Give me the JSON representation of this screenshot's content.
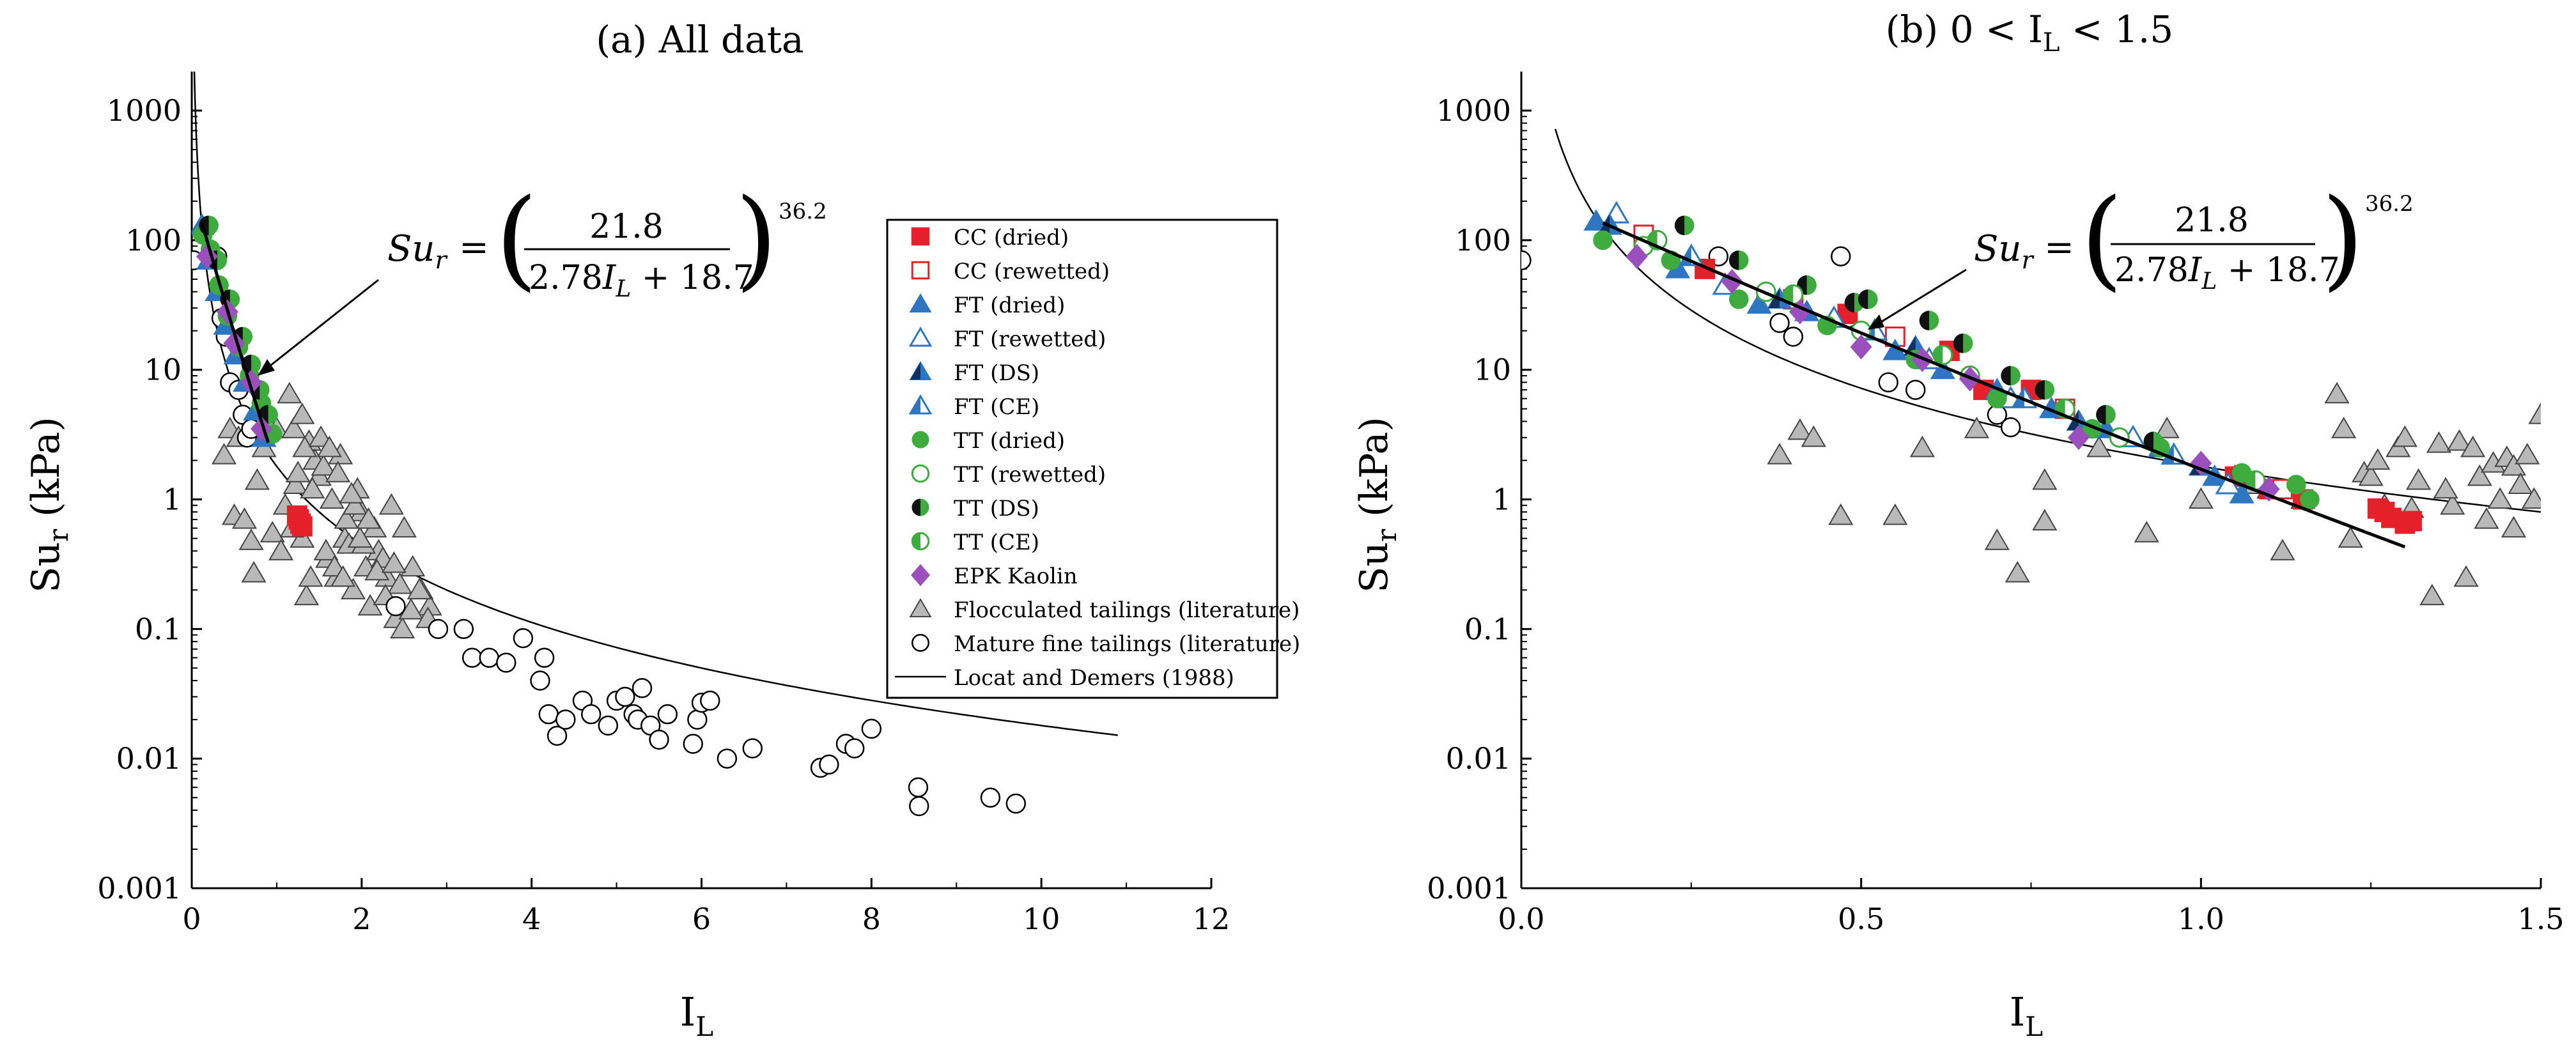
{
  "colors": {
    "axis": "#000000",
    "cc": "#e5202a",
    "ft": "#2e76c2",
    "ft_dark": "#14305c",
    "tt": "#3dab3d",
    "kaolin": "#9b4fbc",
    "floc_fill": "#b9b9b9",
    "floc_stroke": "#444444",
    "mft_fill": "#ffffff"
  },
  "legend": {
    "items": [
      {
        "label": "CC (dried)",
        "marker": "square-filled",
        "color": "#e5202a"
      },
      {
        "label": "CC (rewetted)",
        "marker": "square-open",
        "color": "#e5202a"
      },
      {
        "label": "FT (dried)",
        "marker": "triangle-filled",
        "color": "#2e76c2"
      },
      {
        "label": "FT (rewetted)",
        "marker": "triangle-open",
        "color": "#2e76c2"
      },
      {
        "label": "FT (DS)",
        "marker": "triangle-dark",
        "color": "#2e76c2"
      },
      {
        "label": "FT (CE)",
        "marker": "triangle-half",
        "color": "#2e76c2"
      },
      {
        "label": "TT (dried)",
        "marker": "circle-filled",
        "color": "#3dab3d"
      },
      {
        "label": "TT (rewetted)",
        "marker": "circle-open",
        "color": "#3dab3d"
      },
      {
        "label": "TT (DS)",
        "marker": "circle-dark",
        "color": "#3dab3d"
      },
      {
        "label": "TT (CE)",
        "marker": "circle-half",
        "color": "#3dab3d"
      },
      {
        "label": "EPK Kaolin",
        "marker": "diamond",
        "color": "#9b4fbc"
      },
      {
        "label": "Flocculated tailings (literature)",
        "marker": "triangle-gray",
        "color": "#b9b9b9"
      },
      {
        "label": "Mature fine tailings (literature)",
        "marker": "circle-white",
        "color": "#000000"
      },
      {
        "label": "Locat and Demers (1988)",
        "marker": "line",
        "color": "#000000"
      }
    ]
  },
  "equation": {
    "lhs": "Su",
    "lhs_sub": "r",
    "eq": "=",
    "num": "21.8",
    "den_a": "2.78",
    "den_var": "I",
    "den_var_sub": "L",
    "den_b": "+ 18.7",
    "exp": "36.2"
  },
  "chart_data": [
    {
      "type": "scatter",
      "title": "(a) All data",
      "xlabel": "I",
      "xlabel_sub": "L",
      "ylabel": "Su",
      "ylabel_sub": "r",
      "ylabel_unit": "(kPa)",
      "xlim": [
        0,
        12
      ],
      "ylim": [
        0.001,
        2000
      ],
      "yscale": "log",
      "xticks": [
        0,
        2,
        4,
        6,
        8,
        10,
        12
      ],
      "xtick_labels": [
        "0",
        "2",
        "4",
        "6",
        "8",
        "10",
        "12"
      ],
      "yticks": [
        0.001,
        0.01,
        0.1,
        1,
        10,
        100,
        1000
      ],
      "ytick_labels": [
        "0.001",
        "0.01",
        "0.1",
        "1",
        "10",
        "100",
        "1000"
      ],
      "legend_position": "top-right",
      "fit_line": {
        "name": "Su_r = (21.8/(2.78 I_L + 18.7))^36.2",
        "x": [
          0.12,
          0.9
        ]
      },
      "curve": {
        "name": "Locat and Demers (1988)",
        "x_start": 0.02,
        "x_end": 10.9
      },
      "series": [
        {
          "name": "CC (dried)",
          "marker": "square-filled",
          "x": [
            1.24,
            1.26,
            1.28,
            1.3
          ],
          "y": [
            0.75,
            0.7,
            0.65,
            0.62
          ]
        },
        {
          "name": "FT (dried)",
          "marker": "triangle-filled",
          "x": [
            0.12,
            0.2,
            0.3,
            0.4,
            0.52,
            0.63,
            0.75,
            0.85
          ],
          "y": [
            130,
            70,
            40,
            22,
            13,
            8,
            4.8,
            3
          ]
        },
        {
          "name": "TT (dried)",
          "marker": "circle-filled",
          "x": [
            0.13,
            0.22,
            0.32,
            0.42,
            0.55,
            0.68,
            0.82,
            0.95
          ],
          "y": [
            110,
            85,
            45,
            26,
            15,
            9,
            5.5,
            3.2
          ]
        },
        {
          "name": "TT (DS)",
          "marker": "circle-dark",
          "x": [
            0.2,
            0.3,
            0.45,
            0.6,
            0.7,
            0.8,
            0.9
          ],
          "y": [
            130,
            70,
            35,
            18,
            11,
            7,
            4.5
          ]
        },
        {
          "name": "EPK Kaolin",
          "marker": "diamond",
          "x": [
            0.18,
            0.42,
            0.5,
            0.7,
            0.82
          ],
          "y": [
            75,
            28,
            16,
            8,
            3.5
          ]
        },
        {
          "name": "Flocculated tailings (literature)",
          "marker": "triangle-gray",
          "x": [
            0.38,
            0.45,
            0.5,
            0.55,
            0.62,
            0.7,
            0.73,
            0.77,
            0.85,
            0.95,
            1.0,
            1.05,
            1.1,
            1.15,
            1.2,
            1.22,
            1.25,
            1.3,
            1.35,
            1.38,
            1.4,
            1.45,
            1.5,
            1.3,
            1.42,
            1.18,
            1.33,
            1.6,
            1.7,
            1.8,
            1.9,
            2.0,
            2.05,
            2.1,
            2.2,
            2.3,
            2.4,
            2.5,
            2.6,
            2.7,
            2.8,
            1.55,
            1.65,
            1.75,
            1.85,
            1.95,
            2.15,
            2.25,
            2.35,
            2.45,
            1.52,
            1.62,
            1.72,
            1.82,
            1.92,
            2.02,
            1.58,
            1.68,
            1.78,
            1.88,
            1.98,
            2.08,
            2.18,
            2.28,
            2.38,
            2.48,
            2.58,
            2.68,
            2.78
          ],
          "y": [
            2.2,
            3.5,
            0.75,
            3.0,
            0.7,
            0.48,
            0.27,
            1.4,
            2.5,
            0.55,
            3.5,
            0.4,
            0.9,
            6.5,
            3.5,
            1.3,
            1.6,
            0.5,
            0.18,
            2.8,
            0.25,
            2.0,
            1.5,
            4.5,
            1.2,
            0.6,
            2.5,
            0.35,
            0.25,
            0.5,
            0.2,
            0.8,
            0.3,
            0.15,
            0.4,
            0.25,
            0.12,
            0.6,
            0.3,
            0.2,
            0.15,
            1.8,
            1.0,
            2.2,
            0.45,
            1.2,
            0.6,
            0.35,
            0.9,
            0.22,
            3.0,
            2.5,
            1.6,
            0.7,
            0.9,
            0.45,
            0.4,
            0.3,
            0.25,
            1.1,
            0.5,
            0.7,
            0.28,
            0.18,
            0.32,
            0.1,
            0.14,
            0.2,
            0.12
          ]
        },
        {
          "name": "Mature fine tailings (literature)",
          "marker": "circle-white",
          "x": [
            0.02,
            0.3,
            0.35,
            0.4,
            0.45,
            0.55,
            0.6,
            0.65,
            0.7,
            2.4,
            2.9,
            3.2,
            3.3,
            3.5,
            3.7,
            3.9,
            4.1,
            4.2,
            4.3,
            4.15,
            4.4,
            4.6,
            4.7,
            4.9,
            5.0,
            5.1,
            5.2,
            5.25,
            5.3,
            5.4,
            5.5,
            5.6,
            5.9,
            5.95,
            6.0,
            6.1,
            6.3,
            6.6,
            7.4,
            7.5,
            7.7,
            7.8,
            8.0,
            8.55,
            8.56,
            9.4,
            9.7
          ],
          "y": [
            70,
            75,
            25,
            18,
            8,
            7,
            4.5,
            3,
            3.5,
            0.15,
            0.1,
            0.1,
            0.06,
            0.06,
            0.055,
            0.085,
            0.04,
            0.022,
            0.015,
            0.06,
            0.02,
            0.028,
            0.022,
            0.018,
            0.028,
            0.03,
            0.022,
            0.02,
            0.035,
            0.018,
            0.014,
            0.022,
            0.013,
            0.02,
            0.027,
            0.028,
            0.01,
            0.012,
            0.0085,
            0.009,
            0.013,
            0.012,
            0.017,
            0.006,
            0.0043,
            0.005,
            0.0045
          ]
        }
      ]
    },
    {
      "type": "scatter",
      "title": "(b) 0 < I",
      "title_sub": "L",
      "title_tail": " < 1.5",
      "xlabel": "I",
      "xlabel_sub": "L",
      "ylabel": "Su",
      "ylabel_sub": "r",
      "ylabel_unit": "(kPa)",
      "xlim": [
        0,
        1.5
      ],
      "ylim": [
        0.001,
        2000
      ],
      "yscale": "log",
      "xticks": [
        0,
        0.5,
        1.0,
        1.5
      ],
      "xtick_labels": [
        "0.0",
        "0.5",
        "1.0",
        "1.5"
      ],
      "yticks": [
        0.001,
        0.01,
        0.1,
        1,
        10,
        100,
        1000
      ],
      "ytick_labels": [
        "0.001",
        "0.01",
        "0.1",
        "1",
        "10",
        "100",
        "1000"
      ],
      "fit_line": {
        "name": "Su_r = (21.8/(2.78 I_L + 18.7))^36.2",
        "x": [
          0.12,
          1.3
        ]
      },
      "curve": {
        "name": "Locat and Demers (1988)",
        "x_start": 0.05,
        "x_end": 1.5
      },
      "series": [
        {
          "name": "CC (dried)",
          "marker": "square-filled",
          "x": [
            0.27,
            0.48,
            0.63,
            0.68,
            0.75,
            1.05,
            1.1,
            1.15,
            1.26,
            1.27,
            1.28,
            1.3,
            1.31
          ],
          "y": [
            60,
            27,
            14,
            7,
            7,
            1.5,
            1.2,
            1.0,
            0.85,
            0.8,
            0.72,
            0.65,
            0.68
          ]
        },
        {
          "name": "CC (rewetted)",
          "marker": "square-open",
          "x": [
            0.18,
            0.4,
            0.55,
            0.8,
            1.12
          ],
          "y": [
            110,
            35,
            18,
            5,
            1.2
          ]
        },
        {
          "name": "FT (dried)",
          "marker": "triangle-filled",
          "x": [
            0.11,
            0.23,
            0.35,
            0.42,
            0.55,
            0.62,
            0.7,
            0.78,
            0.86,
            0.94,
            1.02,
            1.06
          ],
          "y": [
            140,
            60,
            32,
            28,
            14,
            10,
            7,
            5,
            3.5,
            2.5,
            1.5,
            1.1
          ]
        },
        {
          "name": "FT (rewetted)",
          "marker": "triangle-open",
          "x": [
            0.14,
            0.3,
            0.46,
            0.6,
            0.72,
            0.9,
            1.04
          ],
          "y": [
            160,
            45,
            25,
            12,
            6,
            3,
            1.3
          ]
        },
        {
          "name": "FT (DS)",
          "marker": "triangle-dark",
          "x": [
            0.13,
            0.38,
            0.58,
            0.82,
            1.0
          ],
          "y": [
            130,
            35,
            15,
            4,
            1.8
          ]
        },
        {
          "name": "FT (CE)",
          "marker": "triangle-half",
          "x": [
            0.25,
            0.52,
            0.74,
            0.96
          ],
          "y": [
            75,
            20,
            6,
            2.2
          ]
        },
        {
          "name": "TT (dried)",
          "marker": "circle-filled",
          "x": [
            0.12,
            0.22,
            0.32,
            0.45,
            0.58,
            0.7,
            0.84,
            0.94,
            1.06,
            1.14,
            1.16
          ],
          "y": [
            100,
            70,
            35,
            22,
            12,
            6,
            3.5,
            2.5,
            1.6,
            1.3,
            1.0
          ]
        },
        {
          "name": "TT (rewetted)",
          "marker": "circle-open",
          "x": [
            0.18,
            0.36,
            0.5,
            0.66,
            0.88
          ],
          "y": [
            90,
            40,
            20,
            9,
            3
          ]
        },
        {
          "name": "TT (DS)",
          "marker": "circle-dark",
          "x": [
            0.24,
            0.32,
            0.42,
            0.49,
            0.51,
            0.6,
            0.65,
            0.72,
            0.77,
            0.86,
            0.93
          ],
          "y": [
            130,
            70,
            45,
            33,
            35,
            24,
            16,
            9,
            7,
            4.5,
            2.8
          ]
        },
        {
          "name": "TT (CE)",
          "marker": "circle-half",
          "x": [
            0.2,
            0.4,
            0.62,
            0.8,
            1.08
          ],
          "y": [
            100,
            38,
            13,
            5,
            1.4
          ]
        },
        {
          "name": "EPK Kaolin",
          "marker": "diamond",
          "x": [
            0.17,
            0.31,
            0.41,
            0.5,
            0.59,
            0.66,
            0.82,
            1.0,
            1.1
          ],
          "y": [
            75,
            48,
            28,
            15,
            12,
            8.5,
            3,
            1.9,
            1.2
          ]
        },
        {
          "name": "Flocculated tailings (literature)",
          "marker": "triangle-gray",
          "x": [
            0.38,
            0.41,
            0.43,
            0.47,
            0.55,
            0.59,
            0.67,
            0.7,
            0.73,
            0.77,
            0.77,
            0.85,
            0.92,
            0.95,
            1.0,
            1.05,
            1.08,
            1.1,
            1.12,
            1.15,
            1.2,
            1.21,
            1.24,
            1.25,
            1.27,
            1.29,
            1.3,
            1.32,
            1.34,
            1.35,
            1.37,
            1.38,
            1.39,
            1.4,
            1.41,
            1.43,
            1.44,
            1.45,
            1.46,
            1.47,
            1.48,
            1.49,
            1.5,
            1.22,
            1.26,
            1.31,
            1.36,
            1.42,
            1.46
          ],
          "y": [
            2.2,
            3.4,
            3.0,
            0.75,
            0.75,
            2.5,
            3.5,
            0.48,
            0.27,
            1.4,
            0.68,
            2.5,
            0.55,
            3.5,
            1.0,
            1.5,
            1.3,
            1.2,
            0.4,
            1.0,
            6.5,
            3.5,
            1.6,
            1.5,
            0.9,
            2.5,
            3.0,
            1.4,
            0.18,
            2.7,
            0.9,
            2.8,
            0.25,
            2.5,
            1.5,
            1.9,
            1.0,
            2.1,
            1.8,
            1.3,
            2.2,
            1.0,
            4.5,
            0.5,
            2.0,
            0.85,
            1.2,
            0.7,
            0.6
          ]
        },
        {
          "name": "Mature fine tailings (literature)",
          "marker": "circle-white",
          "x": [
            0.0,
            0.29,
            0.36,
            0.38,
            0.4,
            0.47,
            0.48,
            0.54,
            0.58,
            0.7,
            0.72
          ],
          "y": [
            70,
            75,
            35,
            23,
            18,
            75,
            25,
            8,
            7,
            4.5,
            3.6
          ]
        }
      ]
    }
  ]
}
